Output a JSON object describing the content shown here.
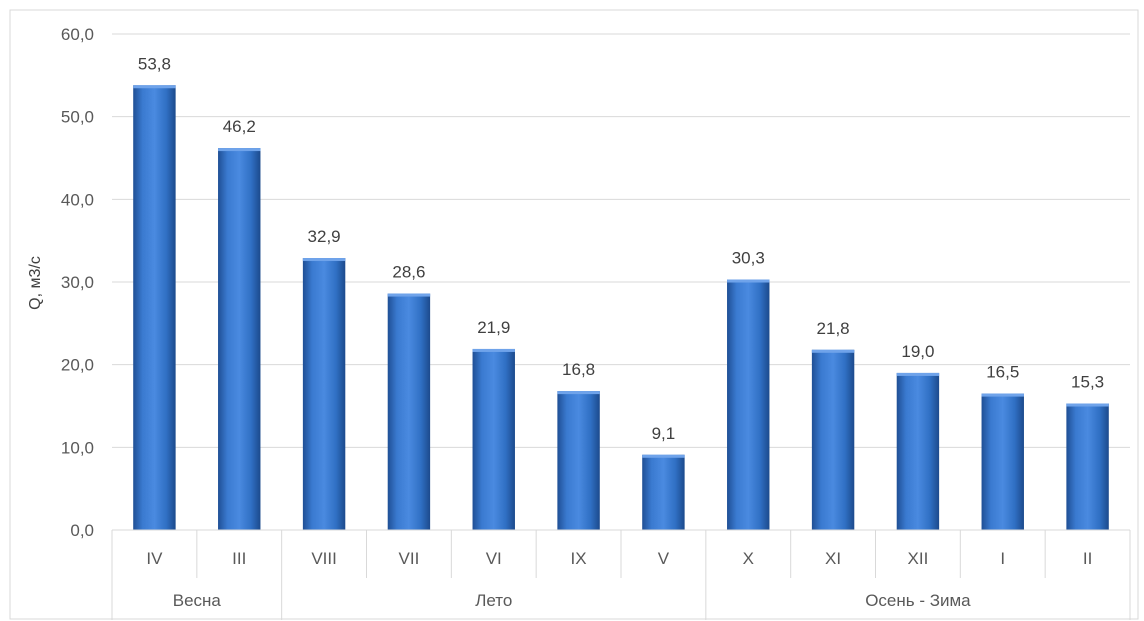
{
  "chart_data": {
    "type": "bar",
    "title": "",
    "ylabel": "Q, м3/с",
    "xlabel": "",
    "ylim": [
      0,
      60
    ],
    "ytick_step": 10,
    "ytick_labels": [
      "0,0",
      "10,0",
      "20,0",
      "30,0",
      "40,0",
      "50,0",
      "60,0"
    ],
    "grid": true,
    "legend": "none",
    "bar_color": "#2e6bc0",
    "groups": [
      {
        "label": "Весна",
        "categories": [
          "IV",
          "III"
        ]
      },
      {
        "label": "Лето",
        "categories": [
          "VIII",
          "VII",
          "VI",
          "IX",
          "V"
        ]
      },
      {
        "label": "Осень - Зима",
        "categories": [
          "X",
          "XI",
          "XII",
          "I",
          "II"
        ]
      }
    ],
    "categories": [
      "IV",
      "III",
      "VIII",
      "VII",
      "VI",
      "IX",
      "V",
      "X",
      "XI",
      "XII",
      "I",
      "II"
    ],
    "values": [
      53.8,
      46.2,
      32.9,
      28.6,
      21.9,
      16.8,
      9.1,
      30.3,
      21.8,
      19.0,
      16.5,
      15.3
    ],
    "value_labels": [
      "53,8",
      "46,2",
      "32,9",
      "28,6",
      "21,9",
      "16,8",
      "9,1",
      "30,3",
      "21,8",
      "19,0",
      "16,5",
      "15,3"
    ]
  }
}
